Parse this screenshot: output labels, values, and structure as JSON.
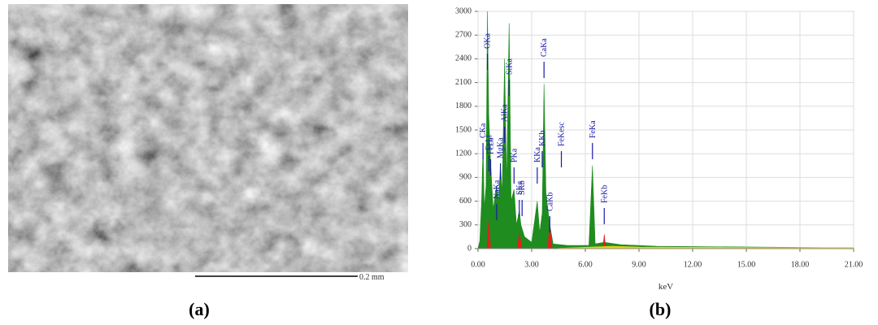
{
  "panels": {
    "a": {
      "caption": "(a)",
      "scale_bar_label": "0.2 mm"
    },
    "b": {
      "caption": "(b)"
    }
  },
  "chart_data": {
    "type": "area",
    "xlabel": "keV",
    "grid": true,
    "xlim": [
      0,
      21
    ],
    "xticks": [
      {
        "value": 0,
        "label": "0.00"
      },
      {
        "value": 3,
        "label": "3.00"
      },
      {
        "value": 6,
        "label": "6.00"
      },
      {
        "value": 9,
        "label": "9.00"
      },
      {
        "value": 12,
        "label": "12.00"
      },
      {
        "value": 15,
        "label": "15.00"
      },
      {
        "value": 18,
        "label": "18.00"
      },
      {
        "value": 21,
        "label": "21.00"
      }
    ],
    "ylim": [
      0,
      3000
    ],
    "yticks": [
      0,
      300,
      600,
      900,
      1200,
      1500,
      1800,
      2100,
      2400,
      2700,
      3000
    ],
    "series": [
      {
        "color": "#1f8c1f",
        "x": [
          0,
          0.1,
          0.2,
          0.28,
          0.35,
          0.45,
          0.525,
          0.6,
          0.7,
          0.85,
          1.04,
          1.15,
          1.25,
          1.35,
          1.486,
          1.6,
          1.739,
          1.85,
          2.013,
          2.15,
          2.307,
          2.4,
          2.6,
          3.0,
          3.312,
          3.45,
          3.589,
          3.69,
          3.8,
          4.012,
          4.2,
          5,
          6.2,
          6.398,
          6.55,
          7.057,
          8,
          10,
          21
        ],
        "values": [
          0,
          100,
          600,
          1300,
          500,
          800,
          3000,
          1700,
          1100,
          500,
          800,
          600,
          1050,
          700,
          2400,
          800,
          2850,
          600,
          750,
          300,
          480,
          300,
          150,
          80,
          600,
          200,
          450,
          2080,
          700,
          300,
          60,
          40,
          40,
          1050,
          60,
          80,
          50,
          30,
          10
        ]
      },
      {
        "color": "#e02020",
        "x": [
          0.5,
          0.6,
          0.7,
          1.5,
          2.2,
          2.31,
          2.45,
          3.2,
          3.9,
          4.01,
          4.15,
          5.5,
          6.98,
          7.06,
          7.14
        ],
        "values": [
          0,
          350,
          0,
          null,
          0,
          200,
          0,
          null,
          0,
          300,
          0,
          null,
          0,
          180,
          0
        ]
      },
      {
        "color": "#e8d21a",
        "x": [
          4.5,
          7.5,
          9,
          21
        ],
        "values": [
          5,
          30,
          20,
          10
        ]
      }
    ],
    "peaks": [
      {
        "label": "CKa",
        "x": 0.277
      },
      {
        "label": "OKa",
        "x": 0.525
      },
      {
        "label": "FeLl",
        "x": 0.615
      },
      {
        "label": "FeLa",
        "x": 0.705
      },
      {
        "label": "NaKa",
        "x": 1.041
      },
      {
        "label": "MgKa",
        "x": 1.253
      },
      {
        "label": "AlKa",
        "x": 1.486
      },
      {
        "label": "SiKa",
        "x": 1.739
      },
      {
        "label": "PKa",
        "x": 2.013
      },
      {
        "label": "SKa",
        "x": 2.307
      },
      {
        "label": "SKb",
        "x": 2.464
      },
      {
        "label": "KKa",
        "x": 3.312
      },
      {
        "label": "KKb",
        "x": 3.589
      },
      {
        "label": "CaKa",
        "x": 3.69
      },
      {
        "label": "CaKb",
        "x": 4.012
      },
      {
        "label": "FeKesc",
        "x": 4.66
      },
      {
        "label": "FeKa",
        "x": 6.398
      },
      {
        "label": "FeKb",
        "x": 7.057
      }
    ]
  }
}
